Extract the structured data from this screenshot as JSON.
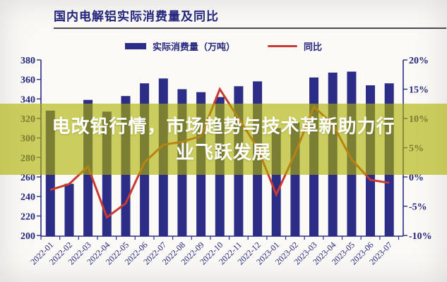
{
  "header": {
    "title": "国内电解铝实际消费量及同比"
  },
  "legend": {
    "bars_label": "实际消费量（万吨）",
    "line_label": "同比"
  },
  "overlay": {
    "line1": "电改铅行情，市场趋势与技术革新助力行",
    "line2": "业飞跃发展"
  },
  "colors": {
    "bar": "#2b2d86",
    "line": "#c93a31",
    "axis": "#2b2d86",
    "tick_text": "#23257d",
    "title_text": "#23257d",
    "band": "rgba(173,178,0,0.62)",
    "overlay_text": "#ffffff",
    "title_underline": "#4b4b4b",
    "background": "#fbfaf7"
  },
  "chart_data": {
    "type": "bar+line",
    "title": "国内电解铝实际消费量及同比",
    "grid": false,
    "legend_position": "top",
    "categories": [
      "2022-01",
      "2022-02",
      "2022-03",
      "2022-04",
      "2022-05",
      "2022-06",
      "2022-07",
      "2022-08",
      "2022-09",
      "2022-10",
      "2022-11",
      "2022-12",
      "2023-01",
      "2023-02",
      "2023-03",
      "2023-04",
      "2023-05",
      "2023-06",
      "2023-07"
    ],
    "series": [
      {
        "name": "实际消费量（万吨）",
        "type": "bar",
        "axis": "left",
        "color": "#2b2d86",
        "values": [
          328,
          253,
          339,
          327,
          343,
          356,
          361,
          350,
          347,
          342,
          353,
          358,
          310,
          316,
          362,
          367,
          368,
          354,
          356
        ]
      },
      {
        "name": "同比",
        "type": "line",
        "axis": "right",
        "color": "#c93a31",
        "values": [
          -2.2,
          -1.2,
          1.8,
          -6.9,
          -4.5,
          2.5,
          5.5,
          6,
          7,
          15,
          10,
          5,
          -3,
          4,
          12,
          9,
          3,
          -0.5,
          -1
        ]
      }
    ],
    "left_axis": {
      "min": 200,
      "max": 380,
      "step": 20,
      "ticks": [
        380,
        360,
        340,
        320,
        300,
        280,
        260,
        240,
        220,
        200
      ]
    },
    "right_axis": {
      "min": -10,
      "max": 20,
      "step": 5,
      "ticks": [
        20,
        15,
        10,
        5,
        0,
        -5,
        -10
      ],
      "tick_labels": [
        "20%",
        "15%",
        "10%",
        "5%",
        "0%",
        "-5%",
        "-10%"
      ]
    }
  }
}
